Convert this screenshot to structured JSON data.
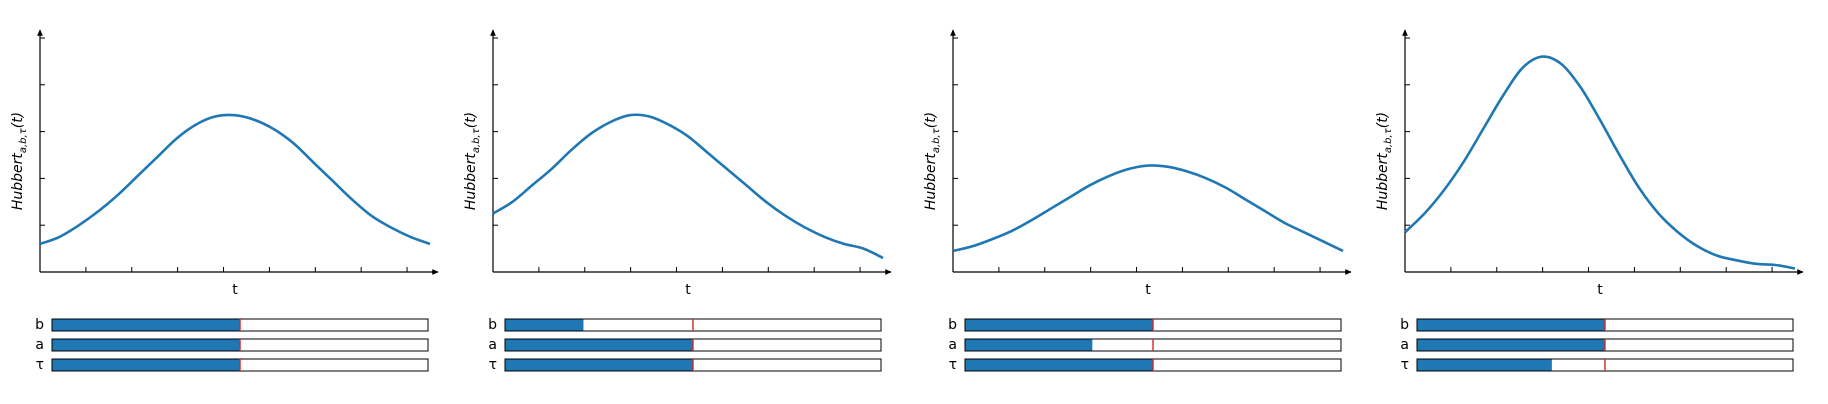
{
  "colors": {
    "curve": "#1f77b4",
    "slider_fill": "#1f77b4",
    "slider_initial_marker": "#d62728",
    "axis": "#000000"
  },
  "chart_data": [
    {
      "type": "line",
      "xlabel": "t",
      "ylabel": "Hubbert_{a,b,τ}(t)",
      "function": "Hubbert curve",
      "x_ticks": 8,
      "y_ticks": 5,
      "ylim": [
        0,
        1
      ],
      "x": [
        0.0,
        0.05,
        0.1,
        0.15,
        0.2,
        0.25,
        0.3,
        0.35,
        0.4,
        0.45,
        0.5,
        0.55,
        0.6,
        0.65,
        0.7,
        0.75,
        0.8,
        0.85,
        0.9,
        0.95,
        1.0
      ],
      "y": [
        0.12,
        0.15,
        0.2,
        0.26,
        0.33,
        0.41,
        0.49,
        0.57,
        0.63,
        0.665,
        0.67,
        0.65,
        0.61,
        0.55,
        0.47,
        0.39,
        0.31,
        0.24,
        0.19,
        0.15,
        0.12
      ],
      "sliders": [
        {
          "label": "b",
          "value": 0.5,
          "initial": 0.5
        },
        {
          "label": "a",
          "value": 0.5,
          "initial": 0.5
        },
        {
          "label": "τ",
          "value": 0.5,
          "initial": 0.5
        }
      ]
    },
    {
      "type": "line",
      "xlabel": "t",
      "ylabel": "Hubbert_{a,b,τ}(t)",
      "function": "Hubbert curve",
      "x_ticks": 8,
      "y_ticks": 5,
      "ylim": [
        0,
        1
      ],
      "x": [
        0.0,
        0.05,
        0.1,
        0.15,
        0.2,
        0.25,
        0.3,
        0.35,
        0.4,
        0.45,
        0.5,
        0.55,
        0.6,
        0.65,
        0.7,
        0.75,
        0.8,
        0.85,
        0.9,
        0.95,
        1.0
      ],
      "y": [
        0.25,
        0.3,
        0.37,
        0.44,
        0.52,
        0.59,
        0.64,
        0.67,
        0.665,
        0.63,
        0.58,
        0.51,
        0.44,
        0.37,
        0.3,
        0.24,
        0.19,
        0.15,
        0.12,
        0.1,
        0.06
      ],
      "sliders": [
        {
          "label": "b",
          "value": 0.21,
          "initial": 0.5
        },
        {
          "label": "a",
          "value": 0.5,
          "initial": 0.5
        },
        {
          "label": "τ",
          "value": 0.5,
          "initial": 0.5
        }
      ]
    },
    {
      "type": "line",
      "xlabel": "t",
      "ylabel": "Hubbert_{a,b,τ}(t)",
      "function": "Hubbert curve",
      "x_ticks": 8,
      "y_ticks": 5,
      "ylim": [
        0,
        1
      ],
      "x": [
        0.0,
        0.05,
        0.1,
        0.15,
        0.2,
        0.25,
        0.3,
        0.35,
        0.4,
        0.45,
        0.5,
        0.55,
        0.6,
        0.65,
        0.7,
        0.75,
        0.8,
        0.85,
        0.9,
        0.95,
        1.0
      ],
      "y": [
        0.09,
        0.11,
        0.14,
        0.175,
        0.22,
        0.27,
        0.32,
        0.37,
        0.41,
        0.44,
        0.455,
        0.45,
        0.43,
        0.4,
        0.36,
        0.31,
        0.26,
        0.21,
        0.17,
        0.13,
        0.09
      ],
      "sliders": [
        {
          "label": "b",
          "value": 0.5,
          "initial": 0.5
        },
        {
          "label": "a",
          "value": 0.34,
          "initial": 0.5
        },
        {
          "label": "τ",
          "value": 0.5,
          "initial": 0.5
        }
      ]
    },
    {
      "type": "line",
      "xlabel": "t",
      "ylabel": "Hubbert_{a,b,τ}(t)",
      "function": "Hubbert curve",
      "x_ticks": 8,
      "y_ticks": 5,
      "ylim": [
        0,
        1
      ],
      "x": [
        0.0,
        0.05,
        0.1,
        0.15,
        0.2,
        0.25,
        0.3,
        0.35,
        0.4,
        0.45,
        0.5,
        0.55,
        0.6,
        0.65,
        0.7,
        0.75,
        0.8,
        0.85,
        0.9,
        0.95,
        1.0
      ],
      "y": [
        0.17,
        0.25,
        0.35,
        0.47,
        0.61,
        0.75,
        0.87,
        0.92,
        0.89,
        0.79,
        0.65,
        0.5,
        0.36,
        0.25,
        0.17,
        0.11,
        0.07,
        0.05,
        0.035,
        0.03,
        0.015
      ],
      "sliders": [
        {
          "label": "b",
          "value": 0.5,
          "initial": 0.5
        },
        {
          "label": "a",
          "value": 0.5,
          "initial": 0.5
        },
        {
          "label": "τ",
          "value": 0.36,
          "initial": 0.5
        }
      ]
    }
  ]
}
